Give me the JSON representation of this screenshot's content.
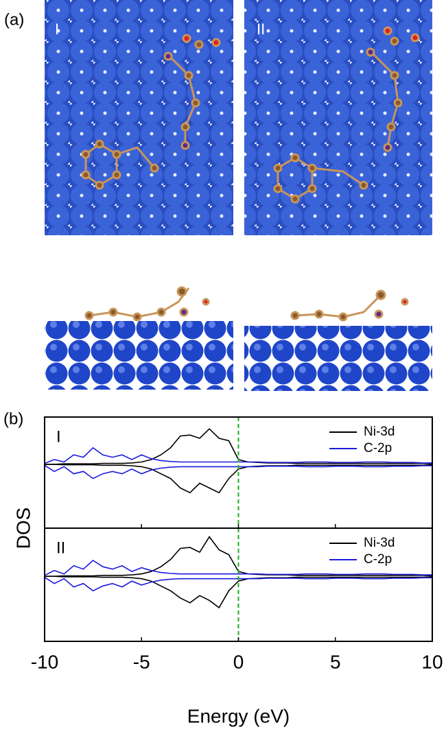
{
  "panel_a": {
    "label": "(a)",
    "images": [
      "I",
      "II"
    ]
  },
  "panel_b_label": "(b)",
  "chart_data": [
    {
      "type": "line",
      "panel": "I",
      "ylabel": "DOS",
      "x": [
        -10,
        -9.5,
        -9,
        -8.5,
        -8,
        -7.5,
        -7,
        -6.5,
        -6,
        -5.5,
        -5,
        -4.5,
        -4,
        -3.5,
        -3,
        -2.5,
        -2,
        -1.5,
        -1,
        -0.5,
        0,
        0.5,
        1,
        1.5,
        2,
        2.5,
        3,
        3.5,
        4,
        4.5,
        5,
        5.5,
        6,
        6.5,
        7,
        7.5,
        8,
        8.5,
        9,
        9.5,
        10
      ],
      "xlim": [
        -10,
        10
      ],
      "xticks": [
        -10,
        -5,
        0,
        5,
        10
      ],
      "ylim": [
        -1.35,
        1
      ],
      "fermi": 0,
      "series": [
        {
          "name": "Ni-3d",
          "color": "#000000",
          "values": [
            0,
            0,
            0.01,
            0.01,
            0.01,
            0.01,
            0.02,
            0.02,
            0.02,
            0.03,
            0.05,
            0.1,
            0.2,
            0.35,
            0.6,
            0.62,
            0.55,
            0.75,
            0.55,
            0.5,
            0.1,
            0.05,
            0.04,
            0.03,
            0.03,
            0.03,
            0.02,
            0.02,
            0.02,
            0.02,
            0.02,
            0.02,
            0.02,
            0.02,
            0.02,
            0.02,
            0.02,
            0.02,
            0.02,
            0.02,
            0.01
          ],
          "down": [
            0,
            0,
            -0.01,
            -0.01,
            -0.01,
            -0.01,
            -0.02,
            -0.02,
            -0.02,
            -0.03,
            -0.05,
            -0.1,
            -0.2,
            -0.3,
            -0.5,
            -0.6,
            -0.4,
            -0.5,
            -0.6,
            -0.3,
            -0.1,
            -0.05,
            -0.04,
            -0.03,
            -0.03,
            -0.03,
            -0.02,
            -0.02,
            -0.02,
            -0.02,
            -0.02,
            -0.02,
            -0.02,
            -0.02,
            -0.02,
            -0.02,
            -0.02,
            -0.02,
            -0.02,
            -0.02,
            -0.01
          ]
        },
        {
          "name": "C-2p",
          "color": "#1a1adc",
          "values": [
            0.02,
            0.1,
            0.05,
            0.2,
            0.15,
            0.35,
            0.2,
            0.15,
            0.2,
            0.1,
            0.2,
            0.12,
            0.08,
            0.06,
            0.05,
            0.05,
            0.05,
            0.05,
            0.05,
            0.05,
            0.05,
            0.05,
            0.05,
            0.04,
            0.04,
            0.04,
            0.04,
            0.05,
            0.05,
            0.05,
            0.04,
            0.04,
            0.04,
            0.05,
            0.05,
            0.05,
            0.04,
            0.04,
            0.04,
            0.03,
            0.03
          ],
          "down": [
            -0.02,
            -0.15,
            -0.05,
            -0.2,
            -0.15,
            -0.3,
            -0.2,
            -0.15,
            -0.2,
            -0.1,
            -0.2,
            -0.12,
            -0.08,
            -0.06,
            -0.05,
            -0.05,
            -0.05,
            -0.05,
            -0.05,
            -0.05,
            -0.05,
            -0.05,
            -0.05,
            -0.04,
            -0.04,
            -0.04,
            -0.04,
            -0.05,
            -0.05,
            -0.05,
            -0.04,
            -0.04,
            -0.04,
            -0.05,
            -0.05,
            -0.05,
            -0.04,
            -0.04,
            -0.04,
            -0.03,
            -0.03
          ]
        }
      ]
    },
    {
      "type": "line",
      "panel": "II",
      "xlabel": "Energy (eV)",
      "x": [
        -10,
        -9.5,
        -9,
        -8.5,
        -8,
        -7.5,
        -7,
        -6.5,
        -6,
        -5.5,
        -5,
        -4.5,
        -4,
        -3.5,
        -3,
        -2.5,
        -2,
        -1.5,
        -1,
        -0.5,
        0,
        0.5,
        1,
        1.5,
        2,
        2.5,
        3,
        3.5,
        4,
        4.5,
        5,
        5.5,
        6,
        6.5,
        7,
        7.5,
        8,
        8.5,
        9,
        9.5,
        10
      ],
      "xlim": [
        -10,
        10
      ],
      "xticks": [
        -10,
        -5,
        0,
        5,
        10
      ],
      "ylim": [
        -1.35,
        1
      ],
      "fermi": 0,
      "series": [
        {
          "name": "Ni-3d",
          "color": "#000000",
          "values": [
            0,
            0,
            0.01,
            0.01,
            0.01,
            0.01,
            0.02,
            0.02,
            0.02,
            0.03,
            0.05,
            0.1,
            0.2,
            0.35,
            0.58,
            0.6,
            0.5,
            0.82,
            0.55,
            0.45,
            0.1,
            0.05,
            0.04,
            0.03,
            0.03,
            0.03,
            0.02,
            0.02,
            0.02,
            0.02,
            0.02,
            0.02,
            0.02,
            0.02,
            0.02,
            0.02,
            0.02,
            0.02,
            0.02,
            0.02,
            0.01
          ],
          "down": [
            0,
            0,
            -0.01,
            -0.01,
            -0.01,
            -0.01,
            -0.02,
            -0.02,
            -0.02,
            -0.03,
            -0.05,
            -0.1,
            -0.2,
            -0.3,
            -0.45,
            -0.55,
            -0.4,
            -0.5,
            -0.65,
            -0.3,
            -0.1,
            -0.05,
            -0.04,
            -0.03,
            -0.03,
            -0.03,
            -0.02,
            -0.02,
            -0.02,
            -0.02,
            -0.02,
            -0.02,
            -0.02,
            -0.02,
            -0.02,
            -0.02,
            -0.02,
            -0.02,
            -0.02,
            -0.02,
            -0.01
          ]
        },
        {
          "name": "C-2p",
          "color": "#1a1adc",
          "values": [
            0.02,
            0.12,
            0.05,
            0.22,
            0.15,
            0.33,
            0.2,
            0.15,
            0.22,
            0.1,
            0.18,
            0.12,
            0.08,
            0.06,
            0.05,
            0.05,
            0.05,
            0.05,
            0.05,
            0.05,
            0.05,
            0.05,
            0.05,
            0.04,
            0.04,
            0.04,
            0.04,
            0.05,
            0.05,
            0.05,
            0.04,
            0.04,
            0.04,
            0.05,
            0.05,
            0.05,
            0.04,
            0.04,
            0.04,
            0.03,
            0.03
          ],
          "down": [
            -0.02,
            -0.15,
            -0.05,
            -0.22,
            -0.15,
            -0.3,
            -0.2,
            -0.15,
            -0.22,
            -0.1,
            -0.18,
            -0.12,
            -0.08,
            -0.06,
            -0.05,
            -0.05,
            -0.05,
            -0.05,
            -0.05,
            -0.05,
            -0.05,
            -0.05,
            -0.05,
            -0.04,
            -0.04,
            -0.04,
            -0.04,
            -0.05,
            -0.05,
            -0.05,
            -0.04,
            -0.04,
            -0.04,
            -0.05,
            -0.05,
            -0.05,
            -0.04,
            -0.04,
            -0.04,
            -0.03,
            -0.03
          ]
        }
      ]
    }
  ]
}
